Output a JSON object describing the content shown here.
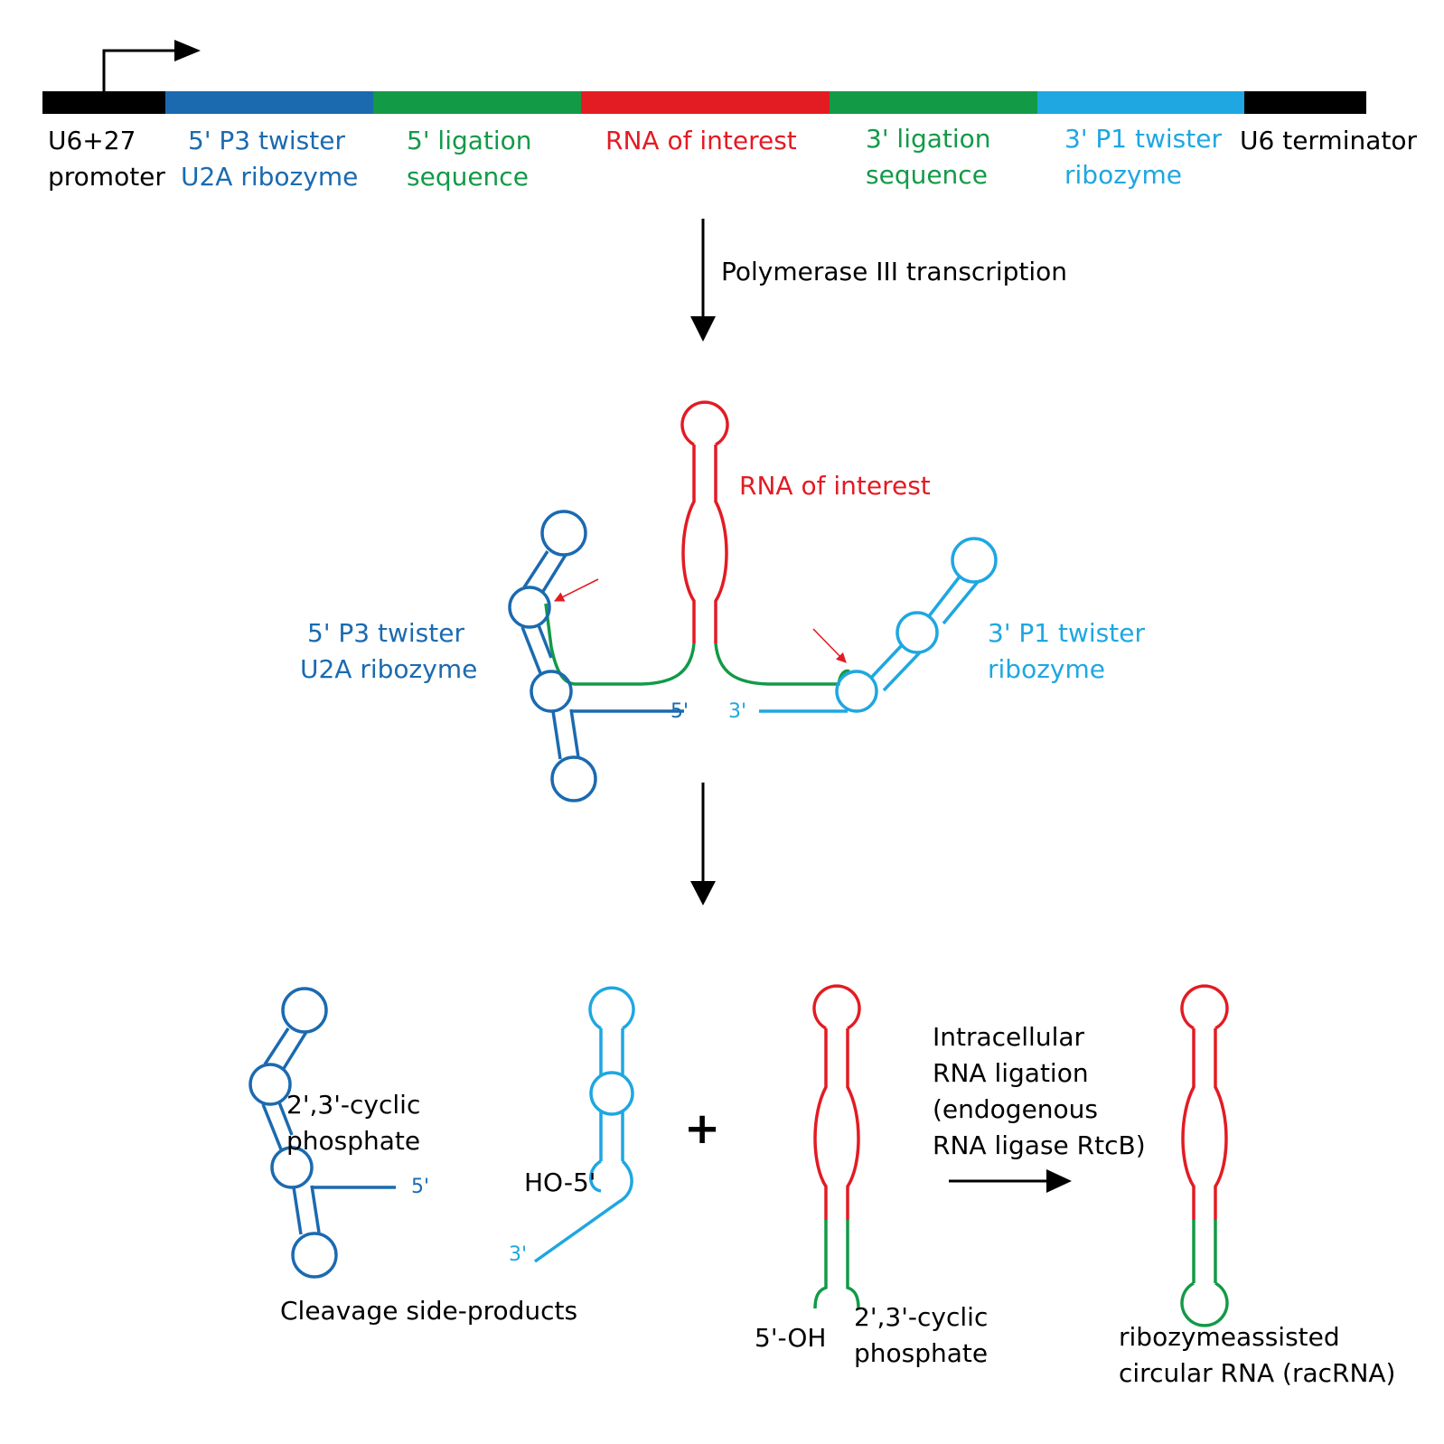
{
  "colors": {
    "black": "#000000",
    "dark_blue": "#1b6ab0",
    "green": "#129a47",
    "red": "#e31b23",
    "light_blue": "#1ea7e1"
  },
  "construct": {
    "segments": [
      {
        "name": "U6+27 promoter",
        "color": "black",
        "line1": "U6+27",
        "line2": "promoter"
      },
      {
        "name": "5' P3 twister U2A ribozyme",
        "color": "dark_blue",
        "line1": "5' P3 twister",
        "line2": "U2A ribozyme"
      },
      {
        "name": "5' ligation sequence",
        "color": "green",
        "line1": "5' ligation",
        "line2": "sequence"
      },
      {
        "name": "RNA of interest",
        "color": "red",
        "line1": "RNA of interest",
        "line2": ""
      },
      {
        "name": "3' ligation sequence",
        "color": "green",
        "line1": "3' ligation",
        "line2": "sequence"
      },
      {
        "name": "3' P1 twister ribozyme",
        "color": "light_blue",
        "line1": "3' P1 twister",
        "line2": "ribozyme"
      },
      {
        "name": "U6 terminator",
        "color": "black",
        "line1": "U6 terminator",
        "line2": ""
      }
    ]
  },
  "step1": {
    "label": "Polymerase III transcription"
  },
  "transcript": {
    "roi_label": "RNA of interest",
    "left_label": [
      "5' P3 twister",
      "U2A ribozyme"
    ],
    "right_label": [
      "3' P1 twister",
      "ribozyme"
    ],
    "five_prime": "5'",
    "three_prime": "3'"
  },
  "products": {
    "cyclic_phosphate_left": [
      "2',3'-cyclic",
      "phosphate"
    ],
    "five_prime_left": "5'",
    "ho5": "HO-5'",
    "three_prime_right": "3'",
    "plus": "+",
    "side_products_label": "Cleavage side-products",
    "oh5": "5'-OH",
    "cyclic_phosphate_mid": [
      "2',3'-cyclic",
      "phosphate"
    ],
    "ligation": [
      "Intracellular",
      "RNA ligation",
      "(endogenous",
      "RNA ligase RtcB)"
    ],
    "racrna": [
      "ribozymeassisted",
      "circular RNA (racRNA)"
    ]
  }
}
